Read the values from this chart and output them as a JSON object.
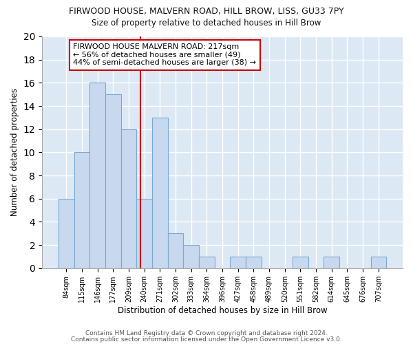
{
  "title1": "FIRWOOD HOUSE, MALVERN ROAD, HILL BROW, LISS, GU33 7PY",
  "title2": "Size of property relative to detached houses in Hill Brow",
  "xlabel": "Distribution of detached houses by size in Hill Brow",
  "ylabel": "Number of detached properties",
  "categories": [
    "84sqm",
    "115sqm",
    "146sqm",
    "177sqm",
    "209sqm",
    "240sqm",
    "271sqm",
    "302sqm",
    "333sqm",
    "364sqm",
    "396sqm",
    "427sqm",
    "458sqm",
    "489sqm",
    "520sqm",
    "551sqm",
    "582sqm",
    "614sqm",
    "645sqm",
    "676sqm",
    "707sqm"
  ],
  "values": [
    6,
    10,
    16,
    15,
    12,
    6,
    13,
    3,
    2,
    1,
    0,
    1,
    1,
    0,
    0,
    1,
    0,
    1,
    0,
    0,
    1
  ],
  "bar_color": "#c8d8ee",
  "bar_edge_color": "#7aaad0",
  "vline_x": 4.75,
  "vline_color": "#cc0000",
  "annotation_text": "FIRWOOD HOUSE MALVERN ROAD: 217sqm\n← 56% of detached houses are smaller (49)\n44% of semi-detached houses are larger (38) →",
  "annotation_box_color": "#ffffff",
  "annotation_box_edge_color": "#cc0000",
  "ylim": [
    0,
    20
  ],
  "yticks": [
    0,
    2,
    4,
    6,
    8,
    10,
    12,
    14,
    16,
    18,
    20
  ],
  "fig_bg_color": "#ffffff",
  "plot_bg_color": "#dde8f5",
  "grid_color": "#ffffff",
  "footer1": "Contains HM Land Registry data © Crown copyright and database right 2024.",
  "footer2": "Contains public sector information licensed under the Open Government Licence v3.0."
}
